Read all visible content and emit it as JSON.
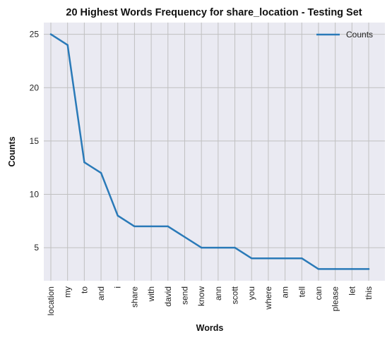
{
  "chart_data": {
    "type": "line",
    "title": "20 Highest Words Frequency for share_location - Testing Set",
    "xlabel": "Words",
    "ylabel": "Counts",
    "categories": [
      "location",
      "my",
      "to",
      "and",
      "i",
      "share",
      "with",
      "david",
      "send",
      "know",
      "ann",
      "scott",
      "you",
      "where",
      "am",
      "tell",
      "can",
      "please",
      "let",
      "this"
    ],
    "series": [
      {
        "name": "Counts",
        "values": [
          25,
          24,
          13,
          12,
          8,
          7,
          7,
          7,
          6,
          5,
          5,
          5,
          4,
          4,
          4,
          4,
          3,
          3,
          3,
          3
        ]
      }
    ],
    "ylim": [
      1.9,
      26.1
    ],
    "yticks": [
      5,
      10,
      15,
      20,
      25
    ],
    "grid": true,
    "legend_position": "top-right",
    "colors": {
      "line": "#2a7ab8",
      "background": "#eaeaf2",
      "grid": "#c0c0c0"
    }
  }
}
